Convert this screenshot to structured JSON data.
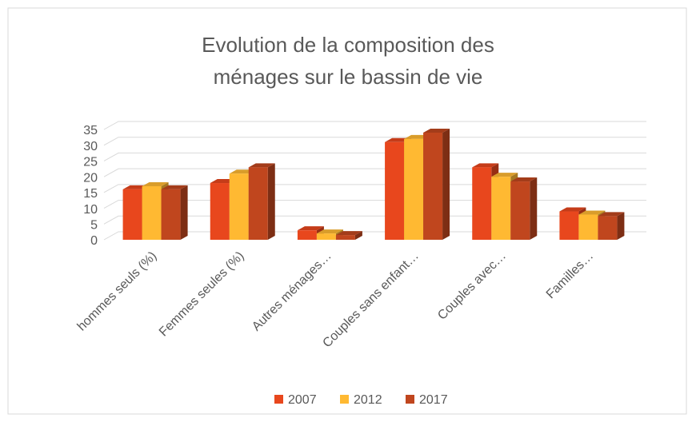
{
  "chart_data": {
    "type": "bar3d",
    "title": "Evolution de la composition des ménages sur le bassin de vie",
    "categories": [
      "hommes seuls (%)",
      "Femmes seules (%)",
      "Autres ménages…",
      "Couples sans enfant…",
      "Couples avec…",
      "Familles…"
    ],
    "series": [
      {
        "name": "2007",
        "color": "#e8471d",
        "values": [
          16,
          18,
          3,
          31,
          23,
          9
        ]
      },
      {
        "name": "2012",
        "color": "#ffb932",
        "values": [
          17,
          21,
          2,
          32,
          20,
          8
        ]
      },
      {
        "name": "2017",
        "color": "#c0461e",
        "values": [
          16,
          23,
          1.5,
          34,
          18.5,
          7.5
        ]
      }
    ],
    "ylim": [
      0,
      35
    ],
    "yticks": [
      0,
      5,
      10,
      15,
      20,
      25,
      30,
      35
    ],
    "grid": true
  }
}
